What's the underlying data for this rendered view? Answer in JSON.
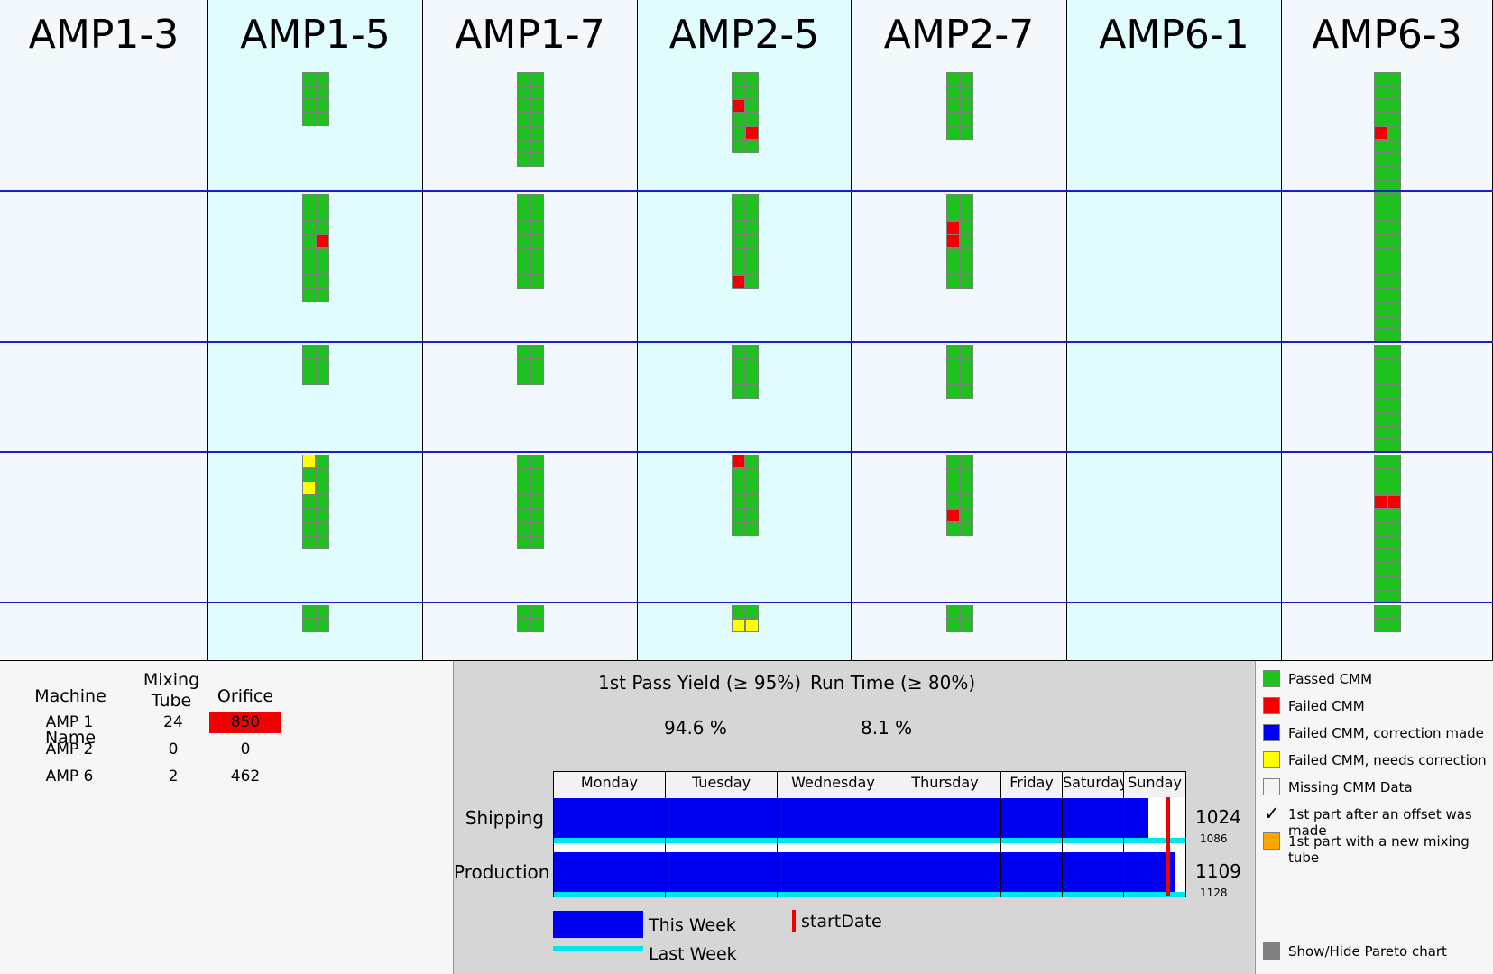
{
  "columns": [
    {
      "name": "AMP1-3",
      "rows": [
        [],
        [],
        [],
        [],
        []
      ]
    },
    {
      "name": "AMP1-5",
      "rows": [
        [
          "GG",
          "GG",
          "GG",
          "GG"
        ],
        [
          "GG",
          "GG",
          "GG",
          "GR",
          "GG",
          "GG",
          "GG",
          "GG"
        ],
        [
          "GG",
          "GG",
          "GG"
        ],
        [
          "YG",
          "GG",
          "YG",
          "GG",
          "GG",
          "GG",
          "GG"
        ],
        [
          "GG",
          "GG"
        ]
      ]
    },
    {
      "name": "AMP1-7",
      "rows": [
        [
          "GG",
          "GG",
          "GG",
          "GG",
          "GG",
          "GG",
          "GG"
        ],
        [
          "GG",
          "GG",
          "GG",
          "GG",
          "GG",
          "GG",
          "GG"
        ],
        [
          "GG",
          "GG",
          "GG"
        ],
        [
          "GG",
          "GG",
          "GG",
          "GG",
          "GG",
          "GG",
          "GG"
        ],
        [
          "GG",
          "GG"
        ]
      ]
    },
    {
      "name": "AMP2-5",
      "rows": [
        [
          "GG",
          "GG",
          "RG",
          "GG",
          "GR",
          "GG"
        ],
        [
          "GG",
          "GG",
          "GG",
          "GG",
          "GG",
          "GG",
          "RG"
        ],
        [
          "GG",
          "GG",
          "GG",
          "GG"
        ],
        [
          "RG",
          "GG",
          "GG",
          "GG",
          "GG",
          "GG"
        ],
        [
          "GG",
          "YY"
        ]
      ]
    },
    {
      "name": "AMP2-7",
      "rows": [
        [
          "GG",
          "GG",
          "GG",
          "GG",
          "GG"
        ],
        [
          "GG",
          "GG",
          "RG",
          "RG",
          "GG",
          "GG",
          "GG"
        ],
        [
          "GG",
          "GG",
          "GG",
          "GG"
        ],
        [
          "GG",
          "GG",
          "GG",
          "GG",
          "RG",
          "GG"
        ],
        [
          "GG",
          "GG"
        ]
      ]
    },
    {
      "name": "AMP6-1",
      "rows": [
        [],
        [],
        [],
        [],
        []
      ]
    },
    {
      "name": "AMP6-3",
      "rows": [
        [
          "GG",
          "GG",
          "GG",
          "GG",
          "RG",
          "GG",
          "GG",
          "GG",
          "GG"
        ],
        [
          "GG",
          "GG",
          "GG",
          "GG",
          "GG",
          "GG",
          "GG",
          "GG",
          "GG",
          "GG",
          "GG"
        ],
        [
          "GG",
          "GG",
          "GG",
          "GG",
          "GG",
          "GG",
          "GG",
          "GG"
        ],
        [
          "GG",
          "GG",
          "GG",
          "RR",
          "GG",
          "GG",
          "GG",
          "GG",
          "GG",
          "GG",
          "GG"
        ],
        [
          "GG",
          "GG"
        ]
      ]
    }
  ],
  "machine_table": {
    "headers": {
      "name": "Machine Name",
      "mixing": "Mixing Tube",
      "orifice": "Orifice"
    },
    "rows": [
      {
        "name": "AMP 1",
        "mixing": "24",
        "orifice": "850",
        "orifice_alarm": true
      },
      {
        "name": "AMP 2",
        "mixing": "0",
        "orifice": "0",
        "orifice_alarm": false
      },
      {
        "name": "AMP 6",
        "mixing": "2",
        "orifice": "462",
        "orifice_alarm": false
      }
    ]
  },
  "stats": {
    "yield_title": "1st Pass Yield (≥ 95%)",
    "yield_value": "94.6 %",
    "runtime_title": "Run Time (≥ 80%)",
    "runtime_value": "8.1 %"
  },
  "week_chart": {
    "days": [
      "Monday",
      "Tuesday",
      "Wednesday",
      "Thursday",
      "Friday",
      "Saturday",
      "Sunday"
    ],
    "shipping": {
      "label": "Shipping",
      "this_week": "1024",
      "last_week": "1086",
      "this_fraction": 0.942,
      "last_fraction": 1.0
    },
    "production": {
      "label": "Production",
      "this_week": "1109",
      "last_week": "1128",
      "this_fraction": 0.983,
      "last_fraction": 1.0
    },
    "start_date_fraction": 0.968,
    "legend_this": "This Week",
    "legend_last": "Last Week",
    "legend_start": "startDate",
    "colors": {
      "this_week": "#0000f0",
      "last_week": "#00e6f0",
      "start_date": "#f00000"
    }
  },
  "legend": [
    {
      "kind": "box",
      "color": "#1ec21e",
      "label": "Passed CMM"
    },
    {
      "kind": "box",
      "color": "#f00000",
      "label": "Failed CMM"
    },
    {
      "kind": "box",
      "color": "#0000f0",
      "label": "Failed CMM, correction made"
    },
    {
      "kind": "box",
      "color": "#ffff00",
      "label": "Failed CMM, needs correction"
    },
    {
      "kind": "box",
      "color": "#f4f4f4",
      "label": "Missing CMM Data"
    },
    {
      "kind": "check",
      "color": "#000000",
      "label": "1st part after an offset was made"
    },
    {
      "kind": "box",
      "color": "#ffa500",
      "label": "1st part with a new mixing tube"
    }
  ],
  "pareto_toggle": {
    "label": "Show/Hide Pareto chart",
    "color": "#808080"
  }
}
